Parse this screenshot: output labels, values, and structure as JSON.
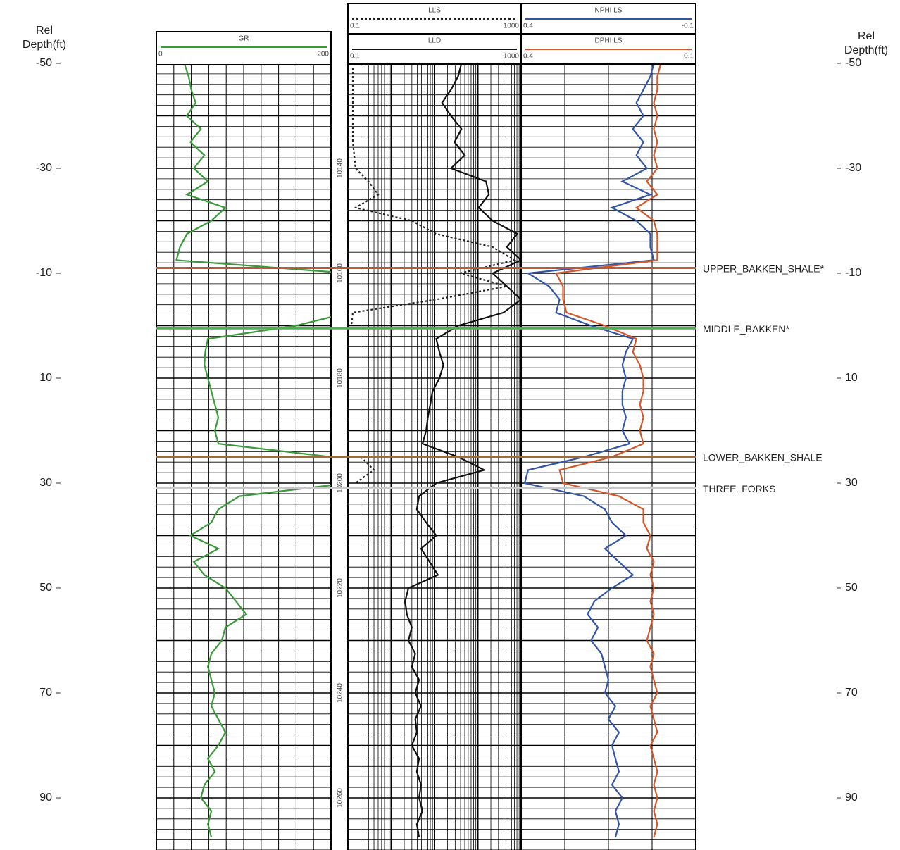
{
  "chart_data": {
    "type": "well-log",
    "depth_title": [
      "Rel",
      "Depth(ft)"
    ],
    "ylim": [
      -50,
      100
    ],
    "yticks": [
      -50,
      -30,
      -10,
      10,
      30,
      50,
      70,
      90
    ],
    "mdticks": [
      {
        "value": -30,
        "label": "10140"
      },
      {
        "value": -10,
        "label": "10160"
      },
      {
        "value": 10,
        "label": "10180"
      },
      {
        "value": 30,
        "label": "10200"
      },
      {
        "value": 50,
        "label": "10220"
      },
      {
        "value": 70,
        "label": "10240"
      },
      {
        "value": 90,
        "label": "10260"
      }
    ],
    "grid": true,
    "depths": [
      -50,
      -47.5,
      -45,
      -42.5,
      -40,
      -37.5,
      -35,
      -32.5,
      -30,
      -27.5,
      -25,
      -22.5,
      -20,
      -17.5,
      -15,
      -12.5,
      -10,
      -7.5,
      -5,
      -2.5,
      0,
      2.5,
      5,
      7.5,
      10,
      12.5,
      15,
      17.5,
      20,
      22.5,
      25,
      27.5,
      30,
      32.5,
      35,
      37.5,
      40,
      42.5,
      45,
      47.5,
      50,
      52.5,
      55,
      57.5,
      60,
      62.5,
      65,
      67.5,
      70,
      72.5,
      75,
      77.5,
      80,
      82.5,
      85,
      87.5,
      90,
      92.5,
      95,
      97.5
    ],
    "tracks": [
      {
        "log": false,
        "curves": [
          {
            "name": "GR",
            "color": "#3a9a3a",
            "dash": false,
            "xlim": [
              0,
              200
            ],
            "values": [
              32,
              37,
              40,
              45,
              35,
              51,
              39,
              55,
              43,
              59,
              35,
              79,
              63,
              35,
              27,
              23,
              220,
              220,
              220,
              220,
              160,
              59,
              56,
              55,
              59,
              63,
              67,
              71,
              67,
              71,
              200,
              220,
              220,
              95,
              71,
              63,
              39,
              71,
              43,
              55,
              79,
              91,
              103,
              79,
              75,
              63,
              59,
              63,
              67,
              63,
              71,
              79,
              71,
              59,
              67,
              55,
              51,
              63,
              59,
              63
            ]
          }
        ]
      },
      {
        "log": true,
        "curves": [
          {
            "name": "LLS",
            "color": "#222222",
            "dash": true,
            "xlim": [
              0.1,
              1000
            ],
            "values": [
              0.13,
              0.13,
              0.13,
              0.13,
              0.13,
              0.13,
              0.13,
              0.14,
              0.15,
              0.3,
              0.5,
              0.15,
              3,
              11,
              220,
              700,
              40,
              470,
              11,
              0.13,
              0.12,
              null,
              null,
              null,
              null,
              null,
              null,
              null,
              null,
              null,
              0.2,
              0.4,
              0.15,
              null,
              null,
              null,
              null,
              null,
              null,
              null,
              null,
              null,
              null,
              null,
              null,
              null,
              null,
              null,
              null,
              null,
              null,
              null,
              null,
              null,
              null,
              null,
              null,
              null,
              null,
              null
            ]
          },
          {
            "name": "LLD",
            "color": "#111111",
            "dash": false,
            "xlim": [
              0.1,
              1000
            ],
            "values": [
              42,
              35,
              24,
              15,
              24,
              42,
              29,
              50,
              24,
              155,
              180,
              105,
              220,
              815,
              470,
              1000,
              220,
              470,
              1000,
              390,
              35,
              11,
              13,
              16,
              13,
              9,
              8,
              7,
              6.4,
              5.3,
              35,
              140,
              11,
              4.4,
              3.9,
              6.4,
              11,
              4.9,
              7.7,
              12,
              2.5,
              2.1,
              2.3,
              3.0,
              2.5,
              3.6,
              3.0,
              4.4,
              3.6,
              4.9,
              3.6,
              3.9,
              3.0,
              4.4,
              3.9,
              4.9,
              4.4,
              5.3,
              3.9,
              4.4
            ]
          }
        ]
      },
      {
        "log": false,
        "curves": [
          {
            "name": "NPHI LS",
            "color": "#3355a8",
            "dash": false,
            "xlim": [
              0.4,
              -0.1
            ],
            "values": [
              0.02,
              0.03,
              0.05,
              0.07,
              0.05,
              0.08,
              0.05,
              0.07,
              0.04,
              0.11,
              0.03,
              0.14,
              0.07,
              0.03,
              0.03,
              0.02,
              0.38,
              0.32,
              0.29,
              0.3,
              0.2,
              0.08,
              0.1,
              0.11,
              0.1,
              0.11,
              0.11,
              0.1,
              0.11,
              0.09,
              0.22,
              0.38,
              0.39,
              0.22,
              0.16,
              0.14,
              0.1,
              0.16,
              0.12,
              0.08,
              0.14,
              0.19,
              0.21,
              0.18,
              0.2,
              0.17,
              0.16,
              0.15,
              0.16,
              0.13,
              0.15,
              0.12,
              0.14,
              0.13,
              0.12,
              0.14,
              0.11,
              0.13,
              0.12,
              0.13
            ]
          },
          {
            "name": "DPHI LS",
            "color": "#d4572a",
            "dash": false,
            "xlim": [
              0.4,
              -0.1
            ],
            "values": [
              0.0,
              0.01,
              0.01,
              0.02,
              0.01,
              0.02,
              0.01,
              0.02,
              0.01,
              0.04,
              0.01,
              0.07,
              0.02,
              0.01,
              0.01,
              0.01,
              0.3,
              0.28,
              0.28,
              0.27,
              0.16,
              0.07,
              0.08,
              0.06,
              0.05,
              0.05,
              0.06,
              0.05,
              0.06,
              0.05,
              0.14,
              0.29,
              0.28,
              0.12,
              0.05,
              0.05,
              0.03,
              0.04,
              0.02,
              0.03,
              0.02,
              0.03,
              0.02,
              0.03,
              0.04,
              0.02,
              0.03,
              0.02,
              0.01,
              0.03,
              0.02,
              0.01,
              0.03,
              0.02,
              0.01,
              0.02,
              0.01,
              0.02,
              0.01,
              0.02
            ]
          }
        ]
      }
    ],
    "tops": [
      {
        "name": "UPPER_BAKKEN_SHALE*",
        "depth": -11,
        "color": "#c0573a"
      },
      {
        "name": "MIDDLE_BAKKEN*",
        "depth": 0.5,
        "color": "#4caf50"
      },
      {
        "name": "LOWER_BAKKEN_SHALE",
        "depth": 25,
        "color": "#9c6b3a"
      },
      {
        "name": "THREE_FORKS",
        "depth": 31,
        "color": "#c8c8c8"
      }
    ]
  }
}
